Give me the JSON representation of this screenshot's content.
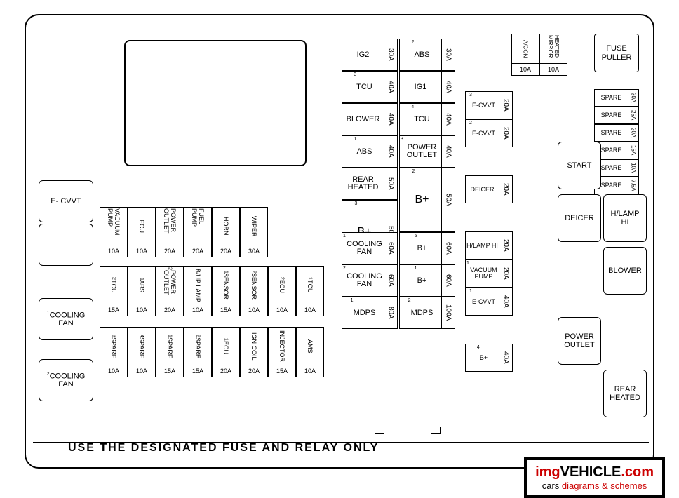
{
  "footer": "USE THE DESIGNATED FUSE AND RELAY ONLY",
  "watermark": {
    "main_a": "img",
    "main_b": "VEHICLE",
    "main_c": ".com",
    "sub_a": "cars ",
    "sub_b": "diagrams & schemes"
  },
  "left_relays": {
    "ecvvt": "E-\nCVVT",
    "cooling1": "COOLING\nFAN",
    "cooling1_sup": "1",
    "cooling2": "COOLING\nFAN",
    "cooling2_sup": "2"
  },
  "bottom_grid": {
    "r1": [
      {
        "l": "VACUUM PUMP",
        "a": "10A"
      },
      {
        "l": "ECU",
        "a": "10A"
      },
      {
        "l": "POWER OUTLET",
        "a": "20A"
      },
      {
        "l": "FUEL PUMP",
        "a": "20A"
      },
      {
        "l": "HORN",
        "a": "20A"
      },
      {
        "l": "WIPER",
        "a": "30A"
      }
    ],
    "r2": [
      {
        "l": "TCU",
        "s": "2",
        "a": "15A"
      },
      {
        "l": "ABS",
        "s": "1",
        "a": "10A"
      },
      {
        "l": "POWER OUTLET",
        "s": "2",
        "a": "20A"
      },
      {
        "l": "B/UP LAMP",
        "a": "10A"
      },
      {
        "l": "SENSOR",
        "s": "1",
        "a": "15A"
      },
      {
        "l": "SENSOR",
        "s": "2",
        "a": "10A"
      },
      {
        "l": "ECU",
        "s": "2",
        "a": "10A"
      },
      {
        "l": "TCU",
        "s": "1",
        "a": "10A"
      }
    ],
    "r3": [
      {
        "l": "SPARE",
        "s": "3",
        "a": "10A"
      },
      {
        "l": "SPARE",
        "s": "4",
        "a": "10A"
      },
      {
        "l": "SPARE",
        "s": "1",
        "a": "15A"
      },
      {
        "l": "SPARE",
        "s": "2",
        "a": "15A"
      },
      {
        "l": "ECU",
        "s": "1",
        "a": "20A"
      },
      {
        "l": "IGN COIL",
        "a": "20A"
      },
      {
        "l": "INJECTOR",
        "a": "15A"
      },
      {
        "l": "AMS",
        "a": "10A"
      }
    ]
  },
  "center": {
    "c1": [
      {
        "l": "IG2",
        "a": "30A"
      },
      {
        "l": "TCU",
        "s": "3",
        "a": "40A"
      },
      {
        "l": "BLOWER",
        "a": "40A"
      },
      {
        "l": "ABS",
        "s": "1",
        "a": "40A"
      },
      {
        "l": "REAR HEATED",
        "a": "50A"
      },
      {
        "l": "B+",
        "s": "3",
        "multi": true,
        "a": "50A"
      },
      {
        "l": "COOLING FAN",
        "s": "1",
        "a": "60A"
      },
      {
        "l": "COOLING FAN",
        "s": "2",
        "a": "60A"
      },
      {
        "l": "MDPS",
        "s": "1",
        "a": "80A"
      }
    ],
    "c2": [
      {
        "l": "ABS",
        "s": "2",
        "a": "30A"
      },
      {
        "l": "IG1",
        "a": "40A"
      },
      {
        "l": "TCU",
        "s": "4",
        "a": "40A"
      },
      {
        "l": "POWER OUTLET",
        "s": "3",
        "a": "40A"
      },
      {
        "l": "B+",
        "s": "2",
        "multi": true,
        "a": "50A"
      },
      null,
      {
        "l": "B+",
        "s": "5",
        "a": "60A"
      },
      {
        "l": "B+",
        "s": "1",
        "a": "60A"
      },
      {
        "l": "MDPS",
        "s": "2",
        "a": "100A"
      }
    ]
  },
  "col3": [
    {
      "l": "E-CVVT",
      "s": "3",
      "a": "20A"
    },
    {
      "l": "E-CVVT",
      "s": "2",
      "a": "20A"
    },
    null,
    {
      "l": "DEICER",
      "a": "20A"
    },
    null,
    {
      "l": "H/LAMP HI",
      "a": "20A"
    },
    {
      "l": "VACUUM PUMP",
      "s": "1",
      "a": "20A"
    },
    {
      "l": "E-CVVT",
      "s": "1",
      "a": "40A"
    },
    null,
    {
      "l": "B+",
      "s": "4",
      "a": "40A"
    }
  ],
  "top_right": [
    {
      "l": "A/CON",
      "a": "10A"
    },
    {
      "l": "HEATED MIRROR",
      "a": "10A"
    }
  ],
  "fuse_puller": "FUSE\nPULLER",
  "spares": [
    {
      "l": "SPARE",
      "a": "30A"
    },
    {
      "l": "SPARE",
      "a": "25A"
    },
    {
      "l": "SPARE",
      "a": "20A"
    },
    {
      "l": "SPARE",
      "a": "15A"
    },
    {
      "l": "SPARE",
      "a": "10A"
    },
    {
      "l": "SPARE",
      "a": "7.5A"
    }
  ],
  "right_relays": [
    "START",
    "DEICER",
    "H/LAMP\nHI",
    "BLOWER",
    "POWER\nOUTLET",
    "REAR\nHEATED"
  ]
}
